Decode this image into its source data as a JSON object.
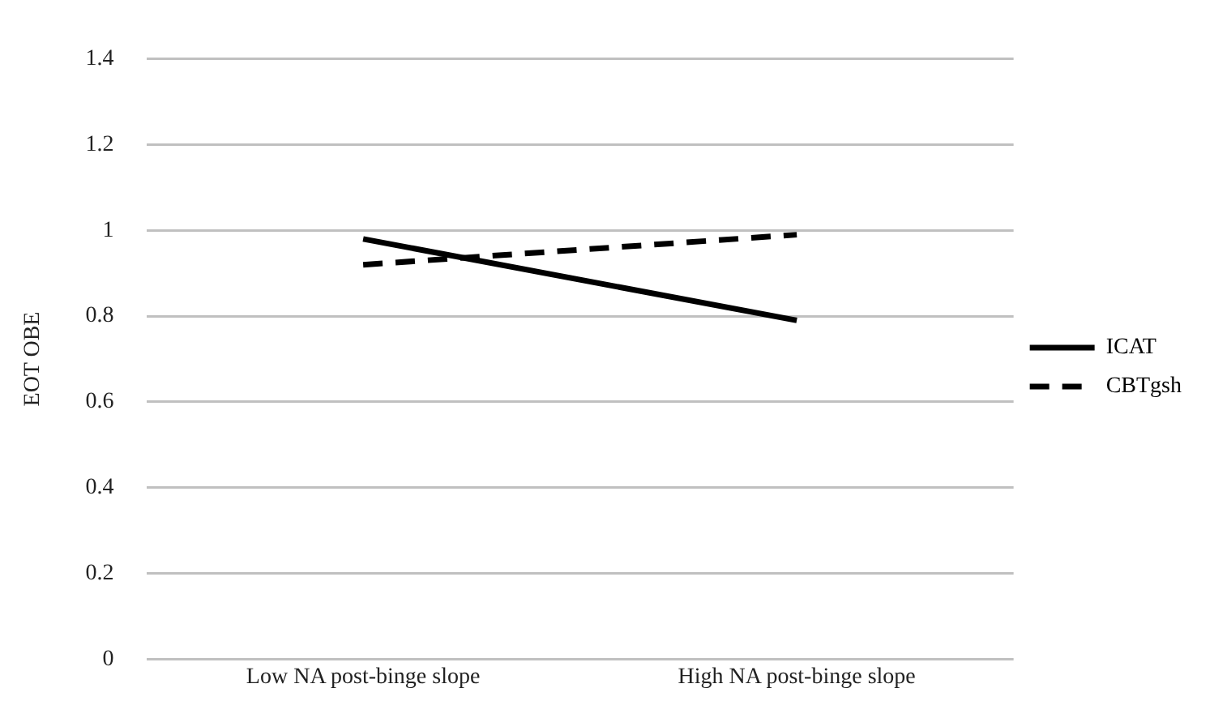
{
  "chart_data": {
    "type": "line",
    "ylabel": "EOT OBE",
    "categories": [
      "Low NA post-binge slope",
      "High NA post-binge slope"
    ],
    "series": [
      {
        "name": "ICAT",
        "color": "#000000",
        "values": [
          0.98,
          0.79
        ],
        "line_style": "solid"
      },
      {
        "name": "CBTgsh",
        "color": "#000000",
        "values": [
          0.92,
          0.99
        ],
        "line_style": "dashed"
      }
    ],
    "ylim": [
      0,
      1.4
    ],
    "yticks": [
      0,
      0.2,
      0.4,
      0.6,
      0.8,
      1,
      1.2,
      1.4
    ],
    "grid": "y",
    "legend": "right",
    "marker": "none"
  }
}
